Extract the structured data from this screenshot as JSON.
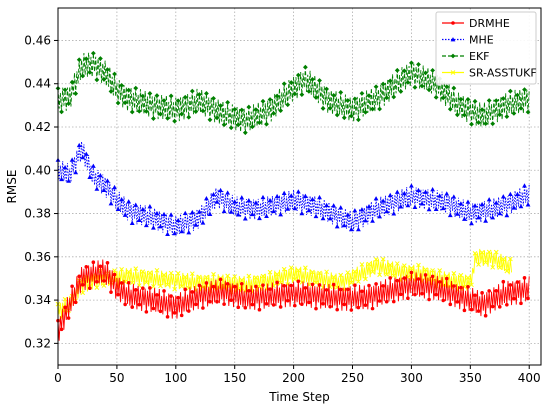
{
  "chart_data": {
    "type": "line",
    "xlabel": "Time Step",
    "ylabel": "RMSE",
    "xlim": [
      0,
      410
    ],
    "ylim": [
      0.31,
      0.475
    ],
    "xticks": [
      0,
      50,
      100,
      150,
      200,
      250,
      300,
      350,
      400
    ],
    "yticks": [
      0.32,
      0.34,
      0.36,
      0.38,
      0.4,
      0.42,
      0.44,
      0.46
    ],
    "ytick_labels": [
      "0.32",
      "0.34",
      "0.36",
      "0.38",
      "0.40",
      "0.42",
      "0.44",
      "0.46"
    ],
    "grid": true,
    "legend_position": "top-right",
    "series": [
      {
        "name": "DRMHE",
        "color": "#ff0000",
        "marker": "circle",
        "linestyle": "solid",
        "x": [
          0,
          10,
          20,
          30,
          40,
          50,
          60,
          80,
          100,
          120,
          140,
          160,
          180,
          200,
          220,
          240,
          260,
          280,
          300,
          320,
          340,
          360,
          380,
          400
        ],
        "values": [
          0.326,
          0.338,
          0.35,
          0.352,
          0.353,
          0.346,
          0.342,
          0.34,
          0.337,
          0.342,
          0.344,
          0.341,
          0.342,
          0.343,
          0.342,
          0.341,
          0.341,
          0.344,
          0.347,
          0.346,
          0.342,
          0.338,
          0.343,
          0.345
        ],
        "amplitude": 0.006
      },
      {
        "name": "MHE",
        "color": "#0000ff",
        "marker": "triangle",
        "linestyle": "dotted",
        "x": [
          0,
          10,
          20,
          30,
          40,
          50,
          60,
          80,
          100,
          120,
          135,
          150,
          170,
          200,
          220,
          250,
          270,
          300,
          330,
          350,
          370,
          385,
          400
        ],
        "values": [
          0.4,
          0.398,
          0.41,
          0.397,
          0.393,
          0.386,
          0.381,
          0.378,
          0.374,
          0.378,
          0.388,
          0.383,
          0.382,
          0.386,
          0.383,
          0.376,
          0.382,
          0.388,
          0.385,
          0.38,
          0.382,
          0.385,
          0.389
        ],
        "amplitude": 0.005
      },
      {
        "name": "EKF",
        "color": "#008000",
        "marker": "diamond",
        "linestyle": "dashed",
        "x": [
          0,
          10,
          20,
          30,
          40,
          50,
          60,
          80,
          100,
          120,
          140,
          160,
          180,
          200,
          210,
          230,
          250,
          270,
          300,
          320,
          340,
          360,
          380,
          400
        ],
        "values": [
          0.432,
          0.434,
          0.448,
          0.449,
          0.445,
          0.437,
          0.433,
          0.43,
          0.428,
          0.432,
          0.426,
          0.423,
          0.428,
          0.438,
          0.442,
          0.432,
          0.428,
          0.433,
          0.445,
          0.44,
          0.43,
          0.425,
          0.43,
          0.433
        ],
        "amplitude": 0.006
      },
      {
        "name": "SR-ASSTUKF",
        "color": "#ffff00",
        "marker": "x",
        "linestyle": "solid",
        "x": [
          0,
          10,
          20,
          30,
          40,
          60,
          80,
          100,
          120,
          140,
          160,
          180,
          200,
          220,
          240,
          260,
          270,
          290,
          310,
          330,
          350,
          355,
          370,
          385
        ],
        "values": [
          0.335,
          0.338,
          0.347,
          0.349,
          0.35,
          0.351,
          0.35,
          0.349,
          0.348,
          0.348,
          0.347,
          0.349,
          0.352,
          0.35,
          0.348,
          0.353,
          0.356,
          0.353,
          0.352,
          0.349,
          0.348,
          0.36,
          0.359,
          0.355
        ],
        "amplitude": 0.004
      }
    ]
  }
}
